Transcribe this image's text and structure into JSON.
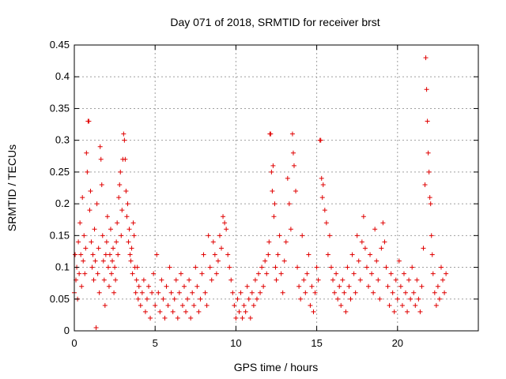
{
  "chart_data": {
    "type": "scatter",
    "title": "Day 071 of 2018, SRMTID for receiver brst",
    "xlabel": "GPS time / hours",
    "ylabel": "SRMTID / TECUs",
    "xlim": [
      0,
      25
    ],
    "ylim": [
      0,
      0.45
    ],
    "xticks": [
      0,
      5,
      10,
      15,
      20
    ],
    "xtick_labels": [
      "0",
      "5",
      "10",
      "15",
      "20"
    ],
    "yticks": [
      0,
      0.05,
      0.1,
      0.15,
      0.2,
      0.25,
      0.3,
      0.35,
      0.4,
      0.45
    ],
    "ytick_labels": [
      "0",
      "0.05",
      "0.1",
      "0.15",
      "0.2",
      "0.25",
      "0.3",
      "0.35",
      "0.4",
      "0.45"
    ],
    "grid": true,
    "marker": "+",
    "color": "#e00000",
    "series": [
      {
        "name": "SRMTID",
        "points": [
          [
            0.0,
            0.06
          ],
          [
            0.05,
            0.12
          ],
          [
            0.1,
            0.08
          ],
          [
            0.15,
            0.1
          ],
          [
            0.2,
            0.05
          ],
          [
            0.25,
            0.14
          ],
          [
            0.3,
            0.09
          ],
          [
            0.35,
            0.17
          ],
          [
            0.4,
            0.12
          ],
          [
            0.45,
            0.07
          ],
          [
            0.5,
            0.21
          ],
          [
            0.55,
            0.11
          ],
          [
            0.6,
            0.15
          ],
          [
            0.65,
            0.09
          ],
          [
            0.7,
            0.13
          ],
          [
            0.75,
            0.28
          ],
          [
            0.8,
            0.25
          ],
          [
            0.85,
            0.33
          ],
          [
            0.9,
            0.33
          ],
          [
            0.95,
            0.19
          ],
          [
            1.0,
            0.22
          ],
          [
            1.05,
            0.14
          ],
          [
            1.1,
            0.1
          ],
          [
            1.15,
            0.12
          ],
          [
            1.2,
            0.08
          ],
          [
            1.25,
            0.16
          ],
          [
            1.3,
            0.11
          ],
          [
            1.35,
            0.005
          ],
          [
            1.4,
            0.2
          ],
          [
            1.45,
            0.09
          ],
          [
            1.5,
            0.13
          ],
          [
            1.55,
            0.06
          ],
          [
            1.6,
            0.29
          ],
          [
            1.65,
            0.27
          ],
          [
            1.7,
            0.23
          ],
          [
            1.75,
            0.15
          ],
          [
            1.8,
            0.11
          ],
          [
            1.85,
            0.08
          ],
          [
            1.9,
            0.04
          ],
          [
            1.95,
            0.12
          ],
          [
            2.0,
            0.14
          ],
          [
            2.05,
            0.18
          ],
          [
            2.1,
            0.1
          ],
          [
            2.15,
            0.07
          ],
          [
            2.2,
            0.12
          ],
          [
            2.25,
            0.16
          ],
          [
            2.3,
            0.09
          ],
          [
            2.35,
            0.11
          ],
          [
            2.4,
            0.13
          ],
          [
            2.45,
            0.06
          ],
          [
            2.5,
            0.1
          ],
          [
            2.55,
            0.08
          ],
          [
            2.6,
            0.14
          ],
          [
            2.65,
            0.17
          ],
          [
            2.7,
            0.12
          ],
          [
            2.75,
            0.21
          ],
          [
            2.8,
            0.23
          ],
          [
            2.85,
            0.25
          ],
          [
            2.9,
            0.15
          ],
          [
            2.95,
            0.19
          ],
          [
            3.0,
            0.27
          ],
          [
            3.05,
            0.31
          ],
          [
            3.1,
            0.3
          ],
          [
            3.15,
            0.27
          ],
          [
            3.2,
            0.22
          ],
          [
            3.25,
            0.18
          ],
          [
            3.3,
            0.2
          ],
          [
            3.35,
            0.14
          ],
          [
            3.4,
            0.16
          ],
          [
            3.45,
            0.12
          ],
          [
            3.5,
            0.11
          ],
          [
            3.55,
            0.13
          ],
          [
            3.6,
            0.09
          ],
          [
            3.65,
            0.17
          ],
          [
            3.7,
            0.15
          ],
          [
            3.75,
            0.1
          ],
          [
            3.8,
            0.06
          ],
          [
            3.85,
            0.08
          ],
          [
            3.9,
            0.1
          ],
          [
            3.95,
            0.05
          ],
          [
            4.0,
            0.07
          ],
          [
            4.1,
            0.04
          ],
          [
            4.2,
            0.06
          ],
          [
            4.3,
            0.08
          ],
          [
            4.4,
            0.03
          ],
          [
            4.5,
            0.05
          ],
          [
            4.6,
            0.07
          ],
          [
            4.7,
            0.02
          ],
          [
            4.8,
            0.06
          ],
          [
            4.9,
            0.09
          ],
          [
            5.0,
            0.04
          ],
          [
            5.1,
            0.12
          ],
          [
            5.2,
            0.06
          ],
          [
            5.3,
            0.03
          ],
          [
            5.4,
            0.08
          ],
          [
            5.5,
            0.05
          ],
          [
            5.6,
            0.02
          ],
          [
            5.7,
            0.07
          ],
          [
            5.8,
            0.04
          ],
          [
            5.9,
            0.1
          ],
          [
            6.0,
            0.06
          ],
          [
            6.1,
            0.03
          ],
          [
            6.2,
            0.05
          ],
          [
            6.3,
            0.08
          ],
          [
            6.4,
            0.02
          ],
          [
            6.5,
            0.06
          ],
          [
            6.6,
            0.09
          ],
          [
            6.7,
            0.04
          ],
          [
            6.8,
            0.07
          ],
          [
            6.9,
            0.03
          ],
          [
            7.0,
            0.05
          ],
          [
            7.1,
            0.08
          ],
          [
            7.2,
            0.02
          ],
          [
            7.3,
            0.06
          ],
          [
            7.4,
            0.04
          ],
          [
            7.5,
            0.1
          ],
          [
            7.6,
            0.07
          ],
          [
            7.7,
            0.03
          ],
          [
            7.8,
            0.05
          ],
          [
            7.9,
            0.09
          ],
          [
            8.0,
            0.12
          ],
          [
            8.1,
            0.06
          ],
          [
            8.2,
            0.04
          ],
          [
            8.3,
            0.15
          ],
          [
            8.4,
            0.1
          ],
          [
            8.5,
            0.08
          ],
          [
            8.6,
            0.14
          ],
          [
            8.7,
            0.12
          ],
          [
            8.8,
            0.09
          ],
          [
            8.9,
            0.11
          ],
          [
            9.0,
            0.15
          ],
          [
            9.1,
            0.13
          ],
          [
            9.2,
            0.18
          ],
          [
            9.3,
            0.17
          ],
          [
            9.4,
            0.16
          ],
          [
            9.5,
            0.12
          ],
          [
            9.6,
            0.1
          ],
          [
            9.7,
            0.08
          ],
          [
            9.8,
            0.06
          ],
          [
            9.9,
            0.04
          ],
          [
            10.0,
            0.02
          ],
          [
            10.1,
            0.05
          ],
          [
            10.2,
            0.03
          ],
          [
            10.3,
            0.06
          ],
          [
            10.4,
            0.02
          ],
          [
            10.5,
            0.04
          ],
          [
            10.6,
            0.03
          ],
          [
            10.7,
            0.07
          ],
          [
            10.8,
            0.05
          ],
          [
            10.9,
            0.02
          ],
          [
            11.0,
            0.06
          ],
          [
            11.1,
            0.04
          ],
          [
            11.2,
            0.08
          ],
          [
            11.3,
            0.05
          ],
          [
            11.4,
            0.09
          ],
          [
            11.5,
            0.06
          ],
          [
            11.6,
            0.1
          ],
          [
            11.7,
            0.07
          ],
          [
            11.8,
            0.11
          ],
          [
            11.9,
            0.09
          ],
          [
            12.0,
            0.12
          ],
          [
            12.05,
            0.14
          ],
          [
            12.1,
            0.31
          ],
          [
            12.15,
            0.31
          ],
          [
            12.2,
            0.25
          ],
          [
            12.25,
            0.22
          ],
          [
            12.3,
            0.26
          ],
          [
            12.35,
            0.18
          ],
          [
            12.4,
            0.2
          ],
          [
            12.45,
            0.1
          ],
          [
            12.5,
            0.08
          ],
          [
            12.6,
            0.12
          ],
          [
            12.7,
            0.15
          ],
          [
            12.8,
            0.09
          ],
          [
            12.9,
            0.06
          ],
          [
            13.0,
            0.11
          ],
          [
            13.1,
            0.14
          ],
          [
            13.2,
            0.24
          ],
          [
            13.3,
            0.2
          ],
          [
            13.4,
            0.16
          ],
          [
            13.5,
            0.31
          ],
          [
            13.55,
            0.28
          ],
          [
            13.6,
            0.26
          ],
          [
            13.7,
            0.22
          ],
          [
            13.8,
            0.1
          ],
          [
            13.9,
            0.07
          ],
          [
            14.0,
            0.05
          ],
          [
            14.1,
            0.15
          ],
          [
            14.2,
            0.08
          ],
          [
            14.3,
            0.06
          ],
          [
            14.4,
            0.09
          ],
          [
            14.5,
            0.12
          ],
          [
            14.6,
            0.04
          ],
          [
            14.7,
            0.07
          ],
          [
            14.8,
            0.03
          ],
          [
            14.9,
            0.06
          ],
          [
            15.0,
            0.1
          ],
          [
            15.1,
            0.08
          ],
          [
            15.2,
            0.3
          ],
          [
            15.25,
            0.3
          ],
          [
            15.3,
            0.24
          ],
          [
            15.35,
            0.21
          ],
          [
            15.4,
            0.23
          ],
          [
            15.5,
            0.19
          ],
          [
            15.6,
            0.17
          ],
          [
            15.7,
            0.12
          ],
          [
            15.8,
            0.15
          ],
          [
            15.9,
            0.1
          ],
          [
            16.0,
            0.08
          ],
          [
            16.1,
            0.06
          ],
          [
            16.2,
            0.09
          ],
          [
            16.3,
            0.05
          ],
          [
            16.4,
            0.07
          ],
          [
            16.5,
            0.04
          ],
          [
            16.6,
            0.08
          ],
          [
            16.7,
            0.06
          ],
          [
            16.8,
            0.03
          ],
          [
            16.9,
            0.1
          ],
          [
            17.0,
            0.07
          ],
          [
            17.1,
            0.05
          ],
          [
            17.2,
            0.12
          ],
          [
            17.3,
            0.09
          ],
          [
            17.4,
            0.06
          ],
          [
            17.5,
            0.15
          ],
          [
            17.6,
            0.11
          ],
          [
            17.7,
            0.08
          ],
          [
            17.8,
            0.14
          ],
          [
            17.9,
            0.18
          ],
          [
            18.0,
            0.13
          ],
          [
            18.1,
            0.1
          ],
          [
            18.2,
            0.07
          ],
          [
            18.3,
            0.12
          ],
          [
            18.4,
            0.09
          ],
          [
            18.5,
            0.06
          ],
          [
            18.6,
            0.16
          ],
          [
            18.7,
            0.11
          ],
          [
            18.8,
            0.08
          ],
          [
            18.9,
            0.05
          ],
          [
            19.0,
            0.13
          ],
          [
            19.1,
            0.17
          ],
          [
            19.2,
            0.14
          ],
          [
            19.3,
            0.1
          ],
          [
            19.4,
            0.07
          ],
          [
            19.5,
            0.04
          ],
          [
            19.6,
            0.09
          ],
          [
            19.7,
            0.06
          ],
          [
            19.8,
            0.03
          ],
          [
            19.9,
            0.08
          ],
          [
            20.0,
            0.05
          ],
          [
            20.1,
            0.11
          ],
          [
            20.2,
            0.07
          ],
          [
            20.3,
            0.04
          ],
          [
            20.4,
            0.09
          ],
          [
            20.5,
            0.06
          ],
          [
            20.6,
            0.03
          ],
          [
            20.7,
            0.08
          ],
          [
            20.8,
            0.05
          ],
          [
            20.9,
            0.1
          ],
          [
            21.0,
            0.06
          ],
          [
            21.1,
            0.04
          ],
          [
            21.2,
            0.08
          ],
          [
            21.3,
            0.05
          ],
          [
            21.4,
            0.03
          ],
          [
            21.5,
            0.07
          ],
          [
            21.6,
            0.13
          ],
          [
            21.7,
            0.23
          ],
          [
            21.75,
            0.43
          ],
          [
            21.8,
            0.38
          ],
          [
            21.85,
            0.33
          ],
          [
            21.9,
            0.28
          ],
          [
            21.95,
            0.25
          ],
          [
            22.0,
            0.21
          ],
          [
            22.05,
            0.2
          ],
          [
            22.1,
            0.15
          ],
          [
            22.15,
            0.12
          ],
          [
            22.2,
            0.09
          ],
          [
            22.3,
            0.06
          ],
          [
            22.4,
            0.04
          ],
          [
            22.5,
            0.07
          ],
          [
            22.6,
            0.05
          ],
          [
            22.7,
            0.1
          ],
          [
            22.8,
            0.08
          ],
          [
            22.9,
            0.06
          ],
          [
            23.0,
            0.09
          ]
        ]
      }
    ]
  }
}
